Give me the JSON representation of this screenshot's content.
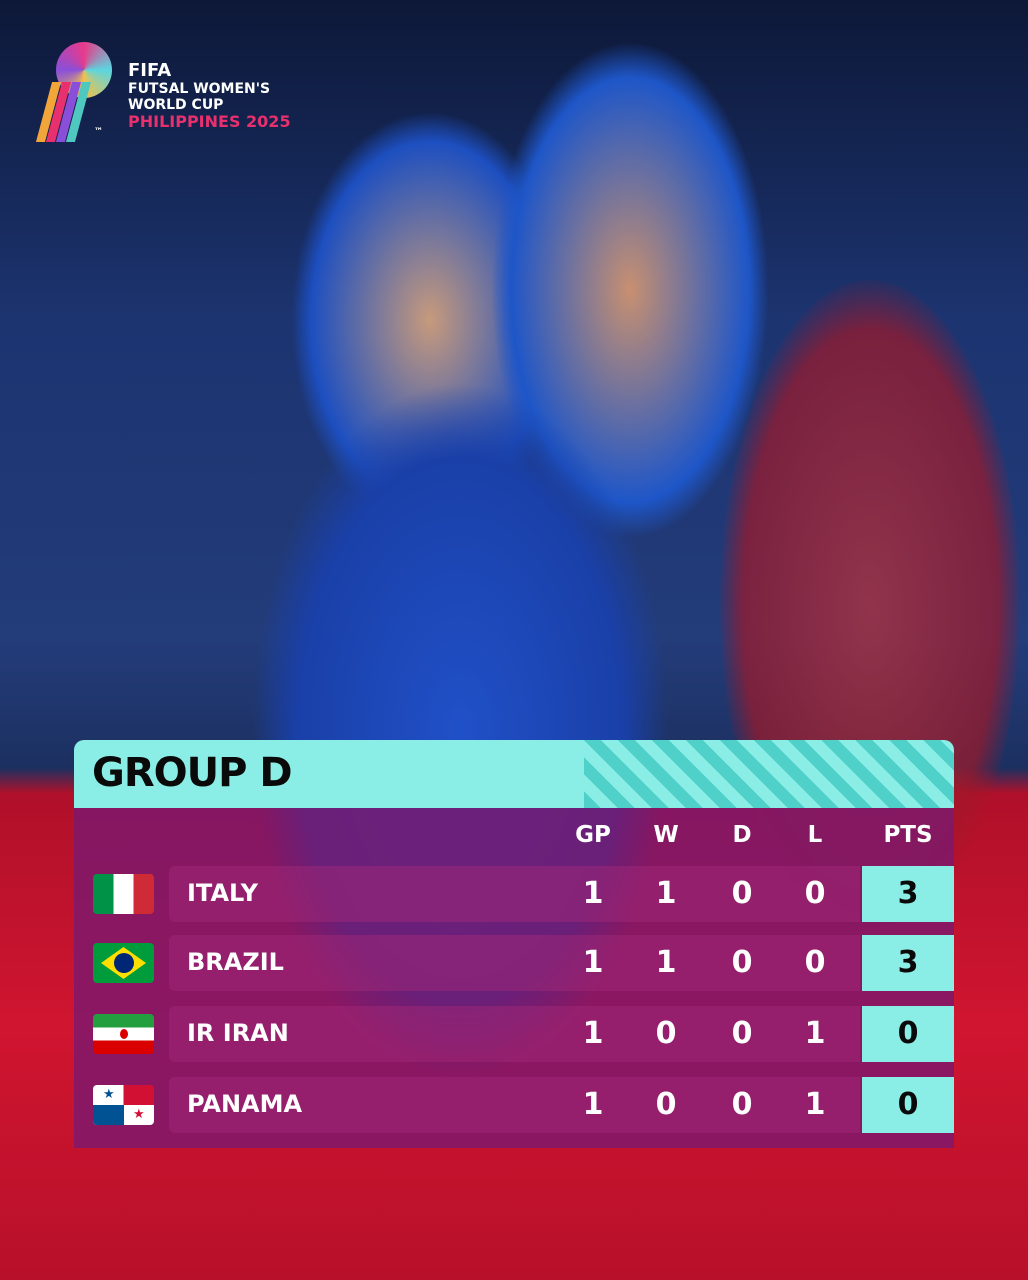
{
  "logo": {
    "line1": "FIFA",
    "line2": "FUTSAL WOMEN'S",
    "line3": "WORLD CUP",
    "line4": "PHILIPPINES 2025",
    "tm": "™"
  },
  "colors": {
    "header": "#8aeee6",
    "table_body": "#7d196e",
    "accent_pink": "#e8306e",
    "bg_blue": "#1c3470",
    "bg_red": "#d01530"
  },
  "table": {
    "title": "GROUP D",
    "columns": [
      "GP",
      "W",
      "D",
      "L",
      "PTS"
    ],
    "rows": [
      {
        "team": "ITALY",
        "flag": "italy-flag",
        "gp": "1",
        "w": "1",
        "d": "0",
        "l": "0",
        "pts": "3"
      },
      {
        "team": "BRAZIL",
        "flag": "brazil-flag",
        "gp": "1",
        "w": "1",
        "d": "0",
        "l": "0",
        "pts": "3"
      },
      {
        "team": "IR IRAN",
        "flag": "iran-flag",
        "gp": "1",
        "w": "0",
        "d": "0",
        "l": "1",
        "pts": "0"
      },
      {
        "team": "PANAMA",
        "flag": "panama-flag",
        "gp": "1",
        "w": "0",
        "d": "0",
        "l": "1",
        "pts": "0"
      }
    ]
  }
}
